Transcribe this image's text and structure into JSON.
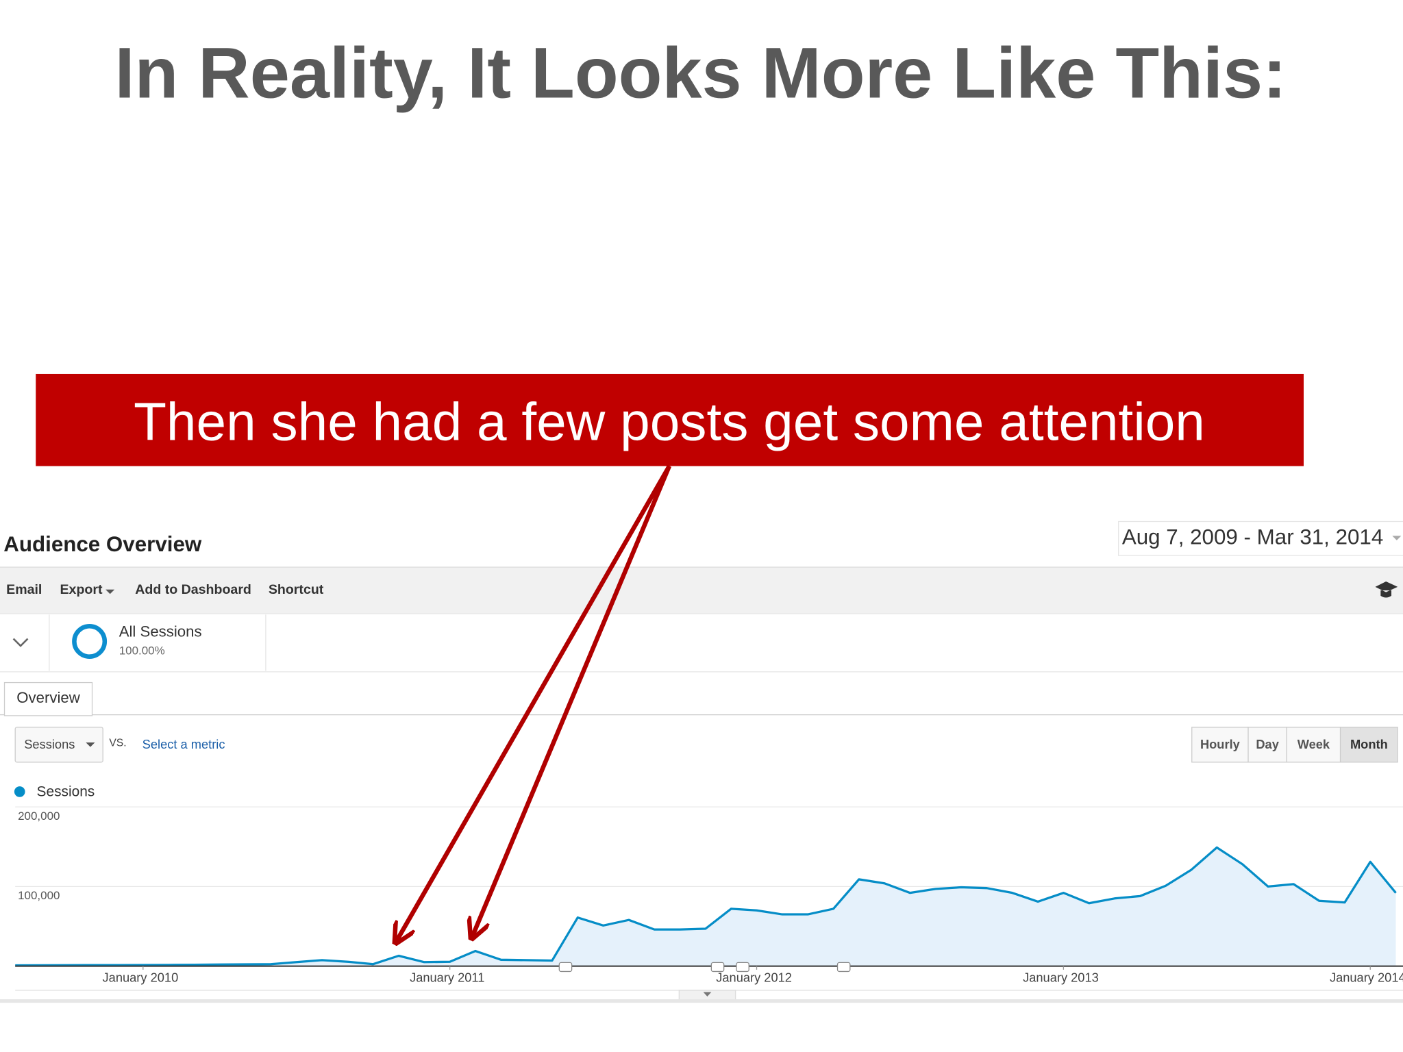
{
  "slide": {
    "title": "In Reality, It Looks More Like This:",
    "callout": "Then she had a few posts get some attention"
  },
  "panel": {
    "title": "Audience Overview",
    "date_range": "Aug 7, 2009 - Mar 31, 2014",
    "toolbar": [
      "Email",
      "Export",
      "Add to Dashboard",
      "Shortcut"
    ],
    "segment": {
      "name": "All Sessions",
      "share": "100.00%"
    },
    "tab": "Overview",
    "metric": "Sessions",
    "vs": "VS.",
    "select_metric": "Select a metric",
    "granularity": [
      "Hourly",
      "Day",
      "Week",
      "Month"
    ]
  },
  "chart_data": {
    "type": "line",
    "series": [
      {
        "name": "Sessions",
        "color": "#058dc7",
        "values": [
          1000,
          1100,
          1200,
          1300,
          1300,
          1400,
          1500,
          1700,
          2000,
          2200,
          2500,
          5000,
          7500,
          5500,
          2500,
          13000,
          5000,
          5500,
          19000,
          8000,
          7500,
          7000,
          61000,
          51000,
          58000,
          46000,
          46000,
          47000,
          72000,
          70000,
          65000,
          65000,
          72000,
          109000,
          104000,
          92000,
          97000,
          99000,
          98000,
          92000,
          81000,
          92000,
          79000,
          85000,
          88000,
          101000,
          121000,
          149000,
          128000,
          100000,
          103000,
          82000,
          80000,
          131000,
          92000
        ]
      }
    ],
    "area_color": "#e5f1fb",
    "xlim": [
      0,
      54
    ],
    "xticks": [
      {
        "value": 5,
        "label": "January 2010"
      },
      {
        "value": 17,
        "label": "January 2011"
      },
      {
        "value": 29,
        "label": "January 2012"
      },
      {
        "value": 41,
        "label": "January 2013"
      },
      {
        "value": 53,
        "label": "January 2014"
      }
    ],
    "ylim": [
      0,
      200000
    ],
    "yticks": [
      {
        "value": 100000,
        "label": "100,000"
      },
      {
        "value": 200000,
        "label": "200,000"
      }
    ],
    "grid": true
  }
}
